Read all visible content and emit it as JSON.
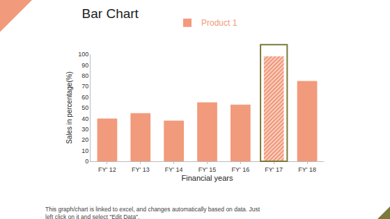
{
  "chart_data": {
    "type": "bar",
    "title": "Bar Chart",
    "categories": [
      "FY' 12",
      "FY' 13",
      "FY' 14",
      "FY' 15",
      "FY' 16",
      "FY' 17",
      "FY' 18"
    ],
    "series": [
      {
        "name": "Product 1",
        "color": "#f29a7c",
        "values": [
          40,
          45,
          38,
          55,
          53,
          98,
          75
        ]
      }
    ],
    "x_label": "Financial years",
    "y_label": "Sales in percentage(%)",
    "ylim": [
      0,
      100
    ],
    "yticks": [
      0,
      10,
      20,
      30,
      40,
      50,
      60,
      70,
      80,
      90,
      100
    ],
    "grid": false,
    "legend": "top",
    "annotations": [
      "This graph/chart is linked to excel, and changes automatically based on data. Just left click on it and select \"Edit Data\"."
    ]
  }
}
